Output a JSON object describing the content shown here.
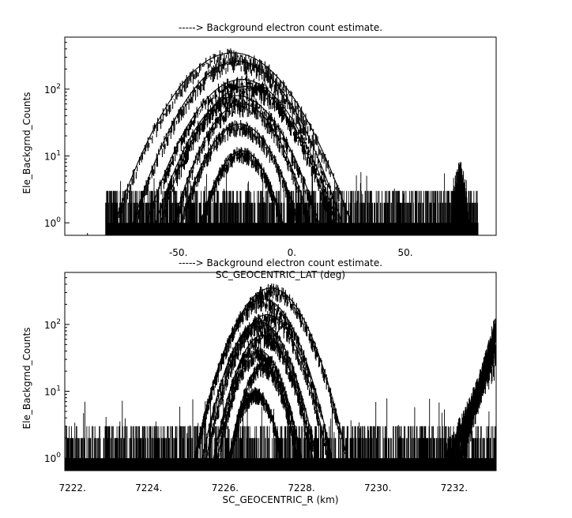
{
  "chart_data": [
    {
      "type": "line",
      "title": "-----> Background electron count estimate.",
      "xlabel": "SC_GEOCENTRIC_LAT (deg)",
      "ylabel": "Ele_Backgrnd_Counts",
      "yscale": "log",
      "xlim": [
        -100,
        90
      ],
      "ylim": [
        0.65,
        600
      ],
      "x_ticks": [
        {
          "value": -50,
          "label": "-50."
        },
        {
          "value": 0,
          "label": "0."
        },
        {
          "value": 50,
          "label": "50."
        }
      ],
      "y_ticks": [
        {
          "value": 1,
          "base": "10",
          "exp": "0"
        },
        {
          "value": 10,
          "base": "10",
          "exp": "1"
        },
        {
          "value": 100,
          "base": "10",
          "exp": "2"
        }
      ],
      "noise": {
        "x_range": [
          -82,
          82
        ],
        "levels": [
          1,
          2,
          3
        ],
        "spike_max": 6
      },
      "secondary_bump": {
        "center": 74,
        "width": 4,
        "peak": 7
      },
      "series": [
        {
          "center": -26,
          "halfwidth": 52,
          "peak": 350
        },
        {
          "center": -24,
          "halfwidth": 46,
          "peak": 260
        },
        {
          "center": -22,
          "halfwidth": 42,
          "peak": 140
        },
        {
          "center": -20,
          "halfwidth": 38,
          "peak": 110
        },
        {
          "center": -24,
          "halfwidth": 36,
          "peak": 80
        },
        {
          "center": -22,
          "halfwidth": 30,
          "peak": 60
        },
        {
          "center": -23,
          "halfwidth": 26,
          "peak": 30
        },
        {
          "center": -22,
          "halfwidth": 18,
          "peak": 12
        }
      ]
    },
    {
      "type": "line",
      "title": "-----> Background electron count estimate.",
      "xlabel": "SC_GEOCENTRIC_R (km)",
      "ylabel": "Ele_Backgrnd_Counts",
      "yscale": "log",
      "xlim": [
        7221.8,
        7233.1
      ],
      "ylim": [
        0.65,
        600
      ],
      "x_ticks": [
        {
          "value": 7222,
          "label": "7222."
        },
        {
          "value": 7224,
          "label": "7224."
        },
        {
          "value": 7226,
          "label": "7226."
        },
        {
          "value": 7228,
          "label": "7228."
        },
        {
          "value": 7230,
          "label": "7230."
        },
        {
          "value": 7232,
          "label": "7232."
        }
      ],
      "y_ticks": [
        {
          "value": 1,
          "base": "10",
          "exp": "0"
        },
        {
          "value": 10,
          "base": "10",
          "exp": "1"
        },
        {
          "value": 100,
          "base": "10",
          "exp": "2"
        }
      ],
      "noise": {
        "x_range": [
          7221.8,
          7233.1
        ],
        "levels": [
          1,
          2,
          3
        ],
        "spike_max": 8
      },
      "rising_edge": {
        "start": 7231.7,
        "end": 7233.1,
        "peak": 130
      },
      "series": [
        {
          "center": 7227.2,
          "halfwidth": 2.0,
          "peak": 350
        },
        {
          "center": 7227.0,
          "halfwidth": 1.8,
          "peak": 240
        },
        {
          "center": 7227.1,
          "halfwidth": 1.6,
          "peak": 140
        },
        {
          "center": 7226.9,
          "halfwidth": 1.5,
          "peak": 110
        },
        {
          "center": 7227.0,
          "halfwidth": 1.3,
          "peak": 70
        },
        {
          "center": 7226.9,
          "halfwidth": 1.1,
          "peak": 40
        },
        {
          "center": 7227.0,
          "halfwidth": 0.9,
          "peak": 25
        },
        {
          "center": 7226.8,
          "halfwidth": 0.7,
          "peak": 10
        }
      ]
    }
  ]
}
